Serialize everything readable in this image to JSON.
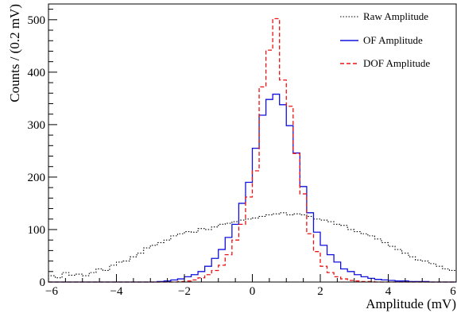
{
  "chart_data": {
    "type": "step-histogram",
    "xlabel": "Amplitude (mV)",
    "ylabel": "Counts / (0.2 mV)",
    "xlim": [
      -6,
      6
    ],
    "ylim": [
      0,
      530
    ],
    "x_ticks": [
      "−6",
      "−4",
      "−2",
      "0",
      "2",
      "4",
      "6"
    ],
    "x_tick_values": [
      -6,
      -4,
      -2,
      0,
      2,
      4,
      6
    ],
    "y_ticks": [
      "0",
      "100",
      "200",
      "300",
      "400",
      "500"
    ],
    "y_tick_values": [
      0,
      100,
      200,
      300,
      400,
      500
    ],
    "bin_edges_start": -6.0,
    "bin_width": 0.2,
    "legend_position": "top-right",
    "series": [
      {
        "name": "Raw Amplitude",
        "color": "#000000",
        "style": "dotted",
        "values": [
          12,
          8,
          18,
          13,
          15,
          12,
          18,
          25,
          22,
          32,
          38,
          40,
          48,
          55,
          65,
          70,
          75,
          80,
          88,
          92,
          96,
          95,
          102,
          100,
          105,
          110,
          112,
          115,
          118,
          120,
          122,
          125,
          128,
          130,
          132,
          128,
          130,
          128,
          125,
          120,
          118,
          115,
          110,
          108,
          100,
          96,
          92,
          88,
          82,
          75,
          68,
          62,
          55,
          48,
          42,
          40,
          35,
          30,
          25,
          22
        ]
      },
      {
        "name": "OF Amplitude",
        "color": "#1111dd",
        "style": "solid",
        "values": [
          0,
          0,
          0,
          0,
          0,
          0,
          0,
          0,
          0,
          0,
          0,
          0,
          0,
          0,
          0,
          0,
          1,
          2,
          4,
          6,
          10,
          14,
          20,
          30,
          45,
          62,
          85,
          110,
          150,
          190,
          255,
          318,
          348,
          358,
          338,
          298,
          246,
          182,
          132,
          95,
          70,
          52,
          38,
          25,
          20,
          14,
          10,
          7,
          5,
          4,
          3,
          2,
          2,
          1,
          1,
          1,
          0,
          0,
          0,
          0
        ]
      },
      {
        "name": "DOF Amplitude",
        "color": "#ee1111",
        "style": "dashed",
        "values": [
          0,
          0,
          0,
          0,
          0,
          0,
          0,
          0,
          0,
          0,
          0,
          0,
          0,
          0,
          0,
          0,
          0,
          0,
          0,
          1,
          2,
          4,
          8,
          14,
          22,
          32,
          52,
          80,
          110,
          162,
          212,
          372,
          442,
          502,
          385,
          335,
          245,
          168,
          92,
          58,
          30,
          18,
          10,
          6,
          3,
          2,
          1,
          1,
          0,
          0,
          0,
          0,
          0,
          0,
          0,
          0,
          0,
          0,
          0,
          0
        ]
      }
    ]
  }
}
